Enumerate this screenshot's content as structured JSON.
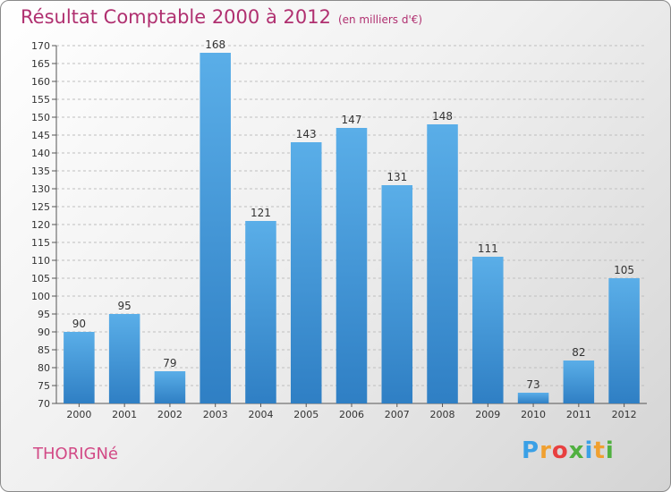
{
  "header": {
    "title": "Résultat Comptable 2000 à 2012",
    "unit": "(en milliers d'€)"
  },
  "footer": {
    "city": "THORIGNé",
    "logo": [
      "P",
      "r",
      "o",
      "x",
      "i",
      "t",
      "i"
    ],
    "logo_colors": [
      "#3aa0e6",
      "#f0a030",
      "#e84040",
      "#50b040",
      "#3aa0e6",
      "#f0a030",
      "#50b040"
    ]
  },
  "colors": {
    "bar_top": "#5aaee8",
    "bar_bottom": "#2f7fc4",
    "grid": "#bfbfbf",
    "text": "#333333"
  },
  "chart_data": {
    "type": "bar",
    "title": "Résultat Comptable 2000 à 2012",
    "subtitle": "(en milliers d'€)",
    "categories": [
      "2000",
      "2001",
      "2002",
      "2003",
      "2004",
      "2005",
      "2006",
      "2007",
      "2008",
      "2009",
      "2010",
      "2011",
      "2012"
    ],
    "values": [
      90,
      95,
      79,
      168,
      121,
      143,
      147,
      131,
      148,
      111,
      73,
      82,
      105
    ],
    "ylim": [
      70,
      170
    ],
    "ytick_step": 5,
    "grid": true,
    "xlabel": "",
    "ylabel": ""
  }
}
